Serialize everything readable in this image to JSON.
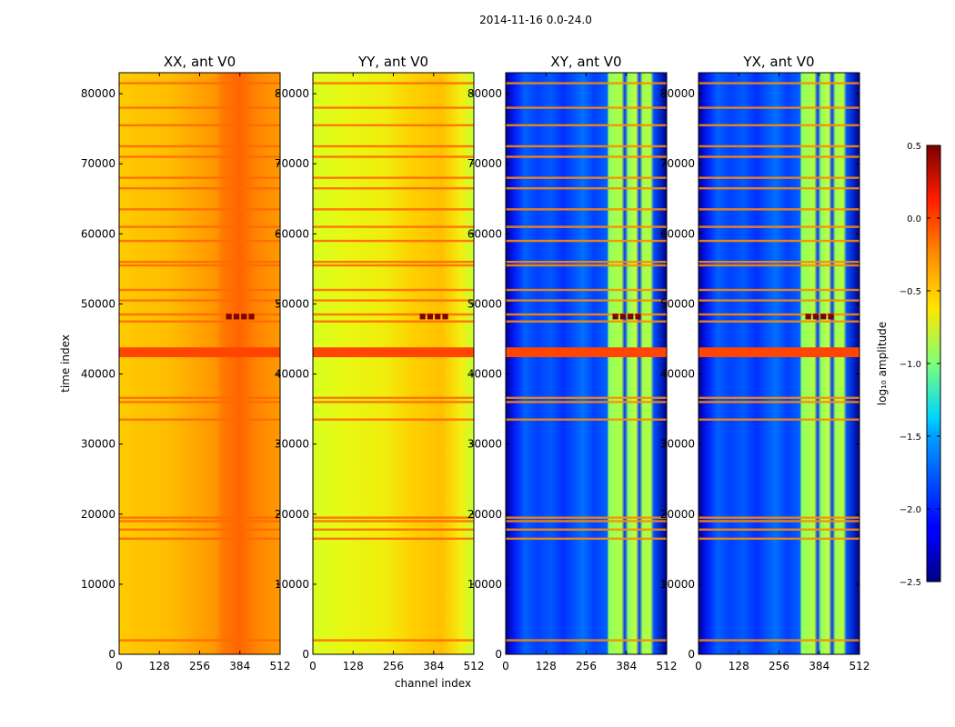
{
  "figure": {
    "suptitle": "2014-11-16 0.0-24.0",
    "xlabel": "channel index",
    "ylabel": "time index",
    "colorbar_label": "log₁₀ amplitude"
  },
  "chart_data": [
    {
      "type": "heatmap",
      "title": "XX, ant V0",
      "colormap": "jet",
      "x_range": [
        0,
        512
      ],
      "y_range": [
        0,
        83000
      ],
      "x_ticks": [
        "0",
        "128",
        "256",
        "384",
        "512"
      ],
      "y_ticks": [
        "0",
        "10000",
        "20000",
        "30000",
        "40000",
        "50000",
        "60000",
        "70000",
        "80000"
      ],
      "typical_log_amplitude": -0.5
    },
    {
      "type": "heatmap",
      "title": "YY, ant V0",
      "colormap": "jet",
      "x_range": [
        0,
        512
      ],
      "y_range": [
        0,
        83000
      ],
      "x_ticks": [
        "0",
        "128",
        "256",
        "384",
        "512"
      ],
      "y_ticks": [
        "0",
        "10000",
        "20000",
        "30000",
        "40000",
        "50000",
        "60000",
        "70000",
        "80000"
      ],
      "typical_log_amplitude": -0.75
    },
    {
      "type": "heatmap",
      "title": "XY, ant V0",
      "colormap": "jet",
      "x_range": [
        0,
        512
      ],
      "y_range": [
        0,
        83000
      ],
      "x_ticks": [
        "0",
        "128",
        "256",
        "384",
        "512"
      ],
      "y_ticks": [
        "0",
        "10000",
        "20000",
        "30000",
        "40000",
        "50000",
        "60000",
        "70000",
        "80000"
      ],
      "typical_log_amplitude": -2.0
    },
    {
      "type": "heatmap",
      "title": "YX, ant V0",
      "colormap": "jet",
      "x_range": [
        0,
        512
      ],
      "y_range": [
        0,
        83000
      ],
      "x_ticks": [
        "0",
        "128",
        "256",
        "384",
        "512"
      ],
      "y_ticks": [
        "0",
        "10000",
        "20000",
        "30000",
        "40000",
        "50000",
        "60000",
        "70000",
        "80000"
      ],
      "typical_log_amplitude": -2.0
    }
  ],
  "colorbar": {
    "range": [
      -2.5,
      0.5
    ],
    "ticks": [
      "0.5",
      "0.0",
      "−0.5",
      "−1.0",
      "−1.5",
      "−2.0",
      "−2.5"
    ],
    "tick_values": [
      0.5,
      0.0,
      -0.5,
      -1.0,
      -1.5,
      -2.0,
      -2.5
    ]
  }
}
